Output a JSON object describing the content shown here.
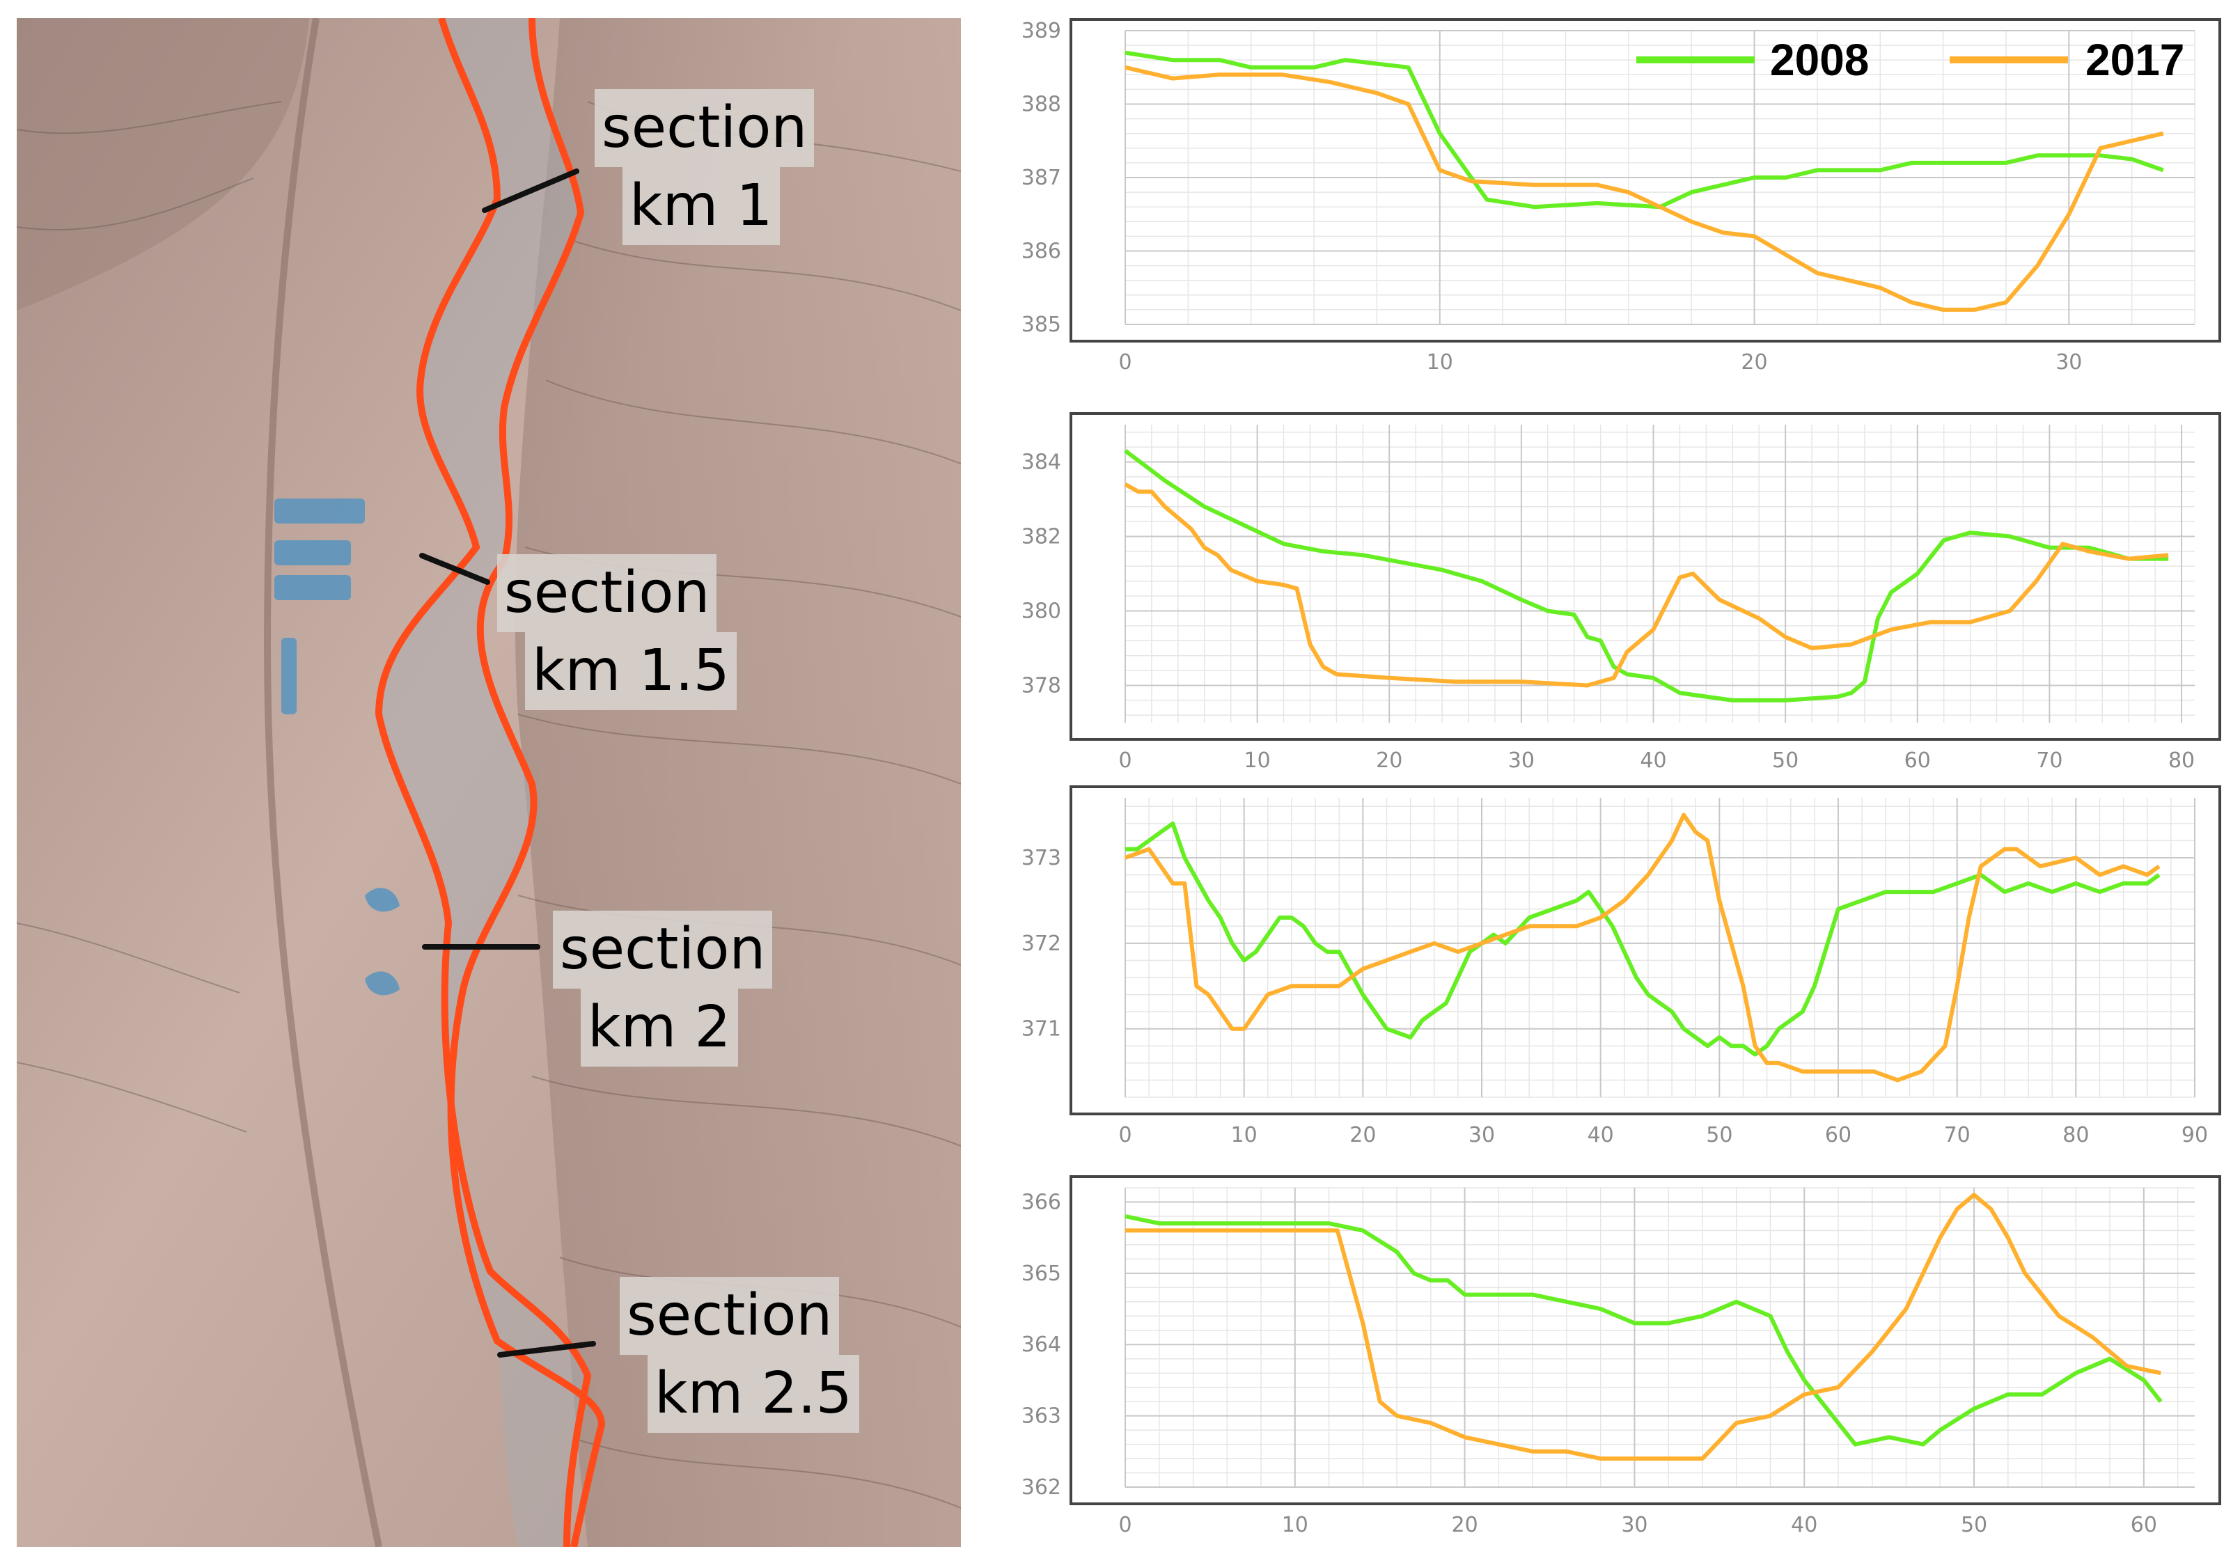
{
  "map": {
    "sections": [
      {
        "line1": "section",
        "line2": "km 1"
      },
      {
        "line1": "section",
        "line2": "km 1.5"
      },
      {
        "line1": "section",
        "line2": "km 2"
      },
      {
        "line1": "section",
        "line2": "km 2.5"
      }
    ],
    "colors": {
      "terrain": "#c2a9a0",
      "river_boundary": "#ff4a1a",
      "section_line": "#111111",
      "buildings": "#5d95bd"
    }
  },
  "chart_data": [
    {
      "type": "line",
      "title": "",
      "xlabel": "",
      "ylabel": "",
      "xlim": [
        0,
        34
      ],
      "ylim": [
        385,
        389
      ],
      "xticks": [
        0,
        10,
        20,
        30
      ],
      "yticks": [
        385,
        386,
        387,
        388,
        389
      ],
      "grid": true,
      "legend": "top-right",
      "series": [
        {
          "name": "2008",
          "color": "#66ee22",
          "x": [
            0,
            1.5,
            3,
            4,
            6,
            7,
            9,
            10,
            11.5,
            13,
            15,
            17,
            18,
            19,
            20,
            21,
            22,
            23,
            24,
            25,
            26,
            27,
            28,
            29,
            30,
            31,
            32,
            33
          ],
          "y": [
            388.7,
            388.6,
            388.6,
            388.5,
            388.5,
            388.6,
            388.5,
            387.6,
            386.7,
            386.6,
            386.65,
            386.6,
            386.8,
            386.9,
            387.0,
            387.0,
            387.1,
            387.1,
            387.1,
            387.2,
            387.2,
            387.2,
            387.2,
            387.3,
            387.3,
            387.3,
            387.25,
            387.1
          ]
        },
        {
          "name": "2017",
          "color": "#ffb02e",
          "x": [
            0,
            1.5,
            3,
            5,
            6.5,
            8,
            9,
            10,
            11,
            13,
            15,
            16,
            17,
            18,
            19,
            20,
            21,
            22,
            23,
            24,
            25,
            26,
            27,
            28,
            29,
            30,
            31,
            33
          ],
          "y": [
            388.5,
            388.35,
            388.4,
            388.4,
            388.3,
            388.15,
            388.0,
            387.1,
            386.95,
            386.9,
            386.9,
            386.8,
            386.6,
            386.4,
            386.25,
            386.2,
            385.95,
            385.7,
            385.6,
            385.5,
            385.3,
            385.2,
            385.2,
            385.3,
            385.8,
            386.5,
            387.4,
            387.6
          ]
        }
      ]
    },
    {
      "type": "line",
      "title": "",
      "xlabel": "",
      "ylabel": "",
      "xlim": [
        0,
        81
      ],
      "ylim": [
        377,
        385
      ],
      "xticks": [
        0,
        10,
        20,
        30,
        40,
        50,
        60,
        70,
        80
      ],
      "yticks": [
        378,
        380,
        382,
        384
      ],
      "grid": true,
      "series": [
        {
          "name": "2008",
          "color": "#66ee22",
          "x": [
            0,
            3,
            6,
            9,
            12,
            15,
            18,
            21,
            24,
            27,
            30,
            32,
            34,
            35,
            36,
            37,
            38,
            40,
            42,
            44,
            46,
            50,
            54,
            55,
            56,
            57,
            58,
            60,
            62,
            64,
            67,
            70,
            73,
            76,
            79
          ],
          "y": [
            384.3,
            383.5,
            382.8,
            382.3,
            381.8,
            381.6,
            381.5,
            381.3,
            381.1,
            380.8,
            380.3,
            380.0,
            379.9,
            379.3,
            379.2,
            378.5,
            378.3,
            378.2,
            377.8,
            377.7,
            377.6,
            377.6,
            377.7,
            377.8,
            378.1,
            379.8,
            380.5,
            381.0,
            381.9,
            382.1,
            382.0,
            381.7,
            381.7,
            381.4,
            381.4
          ]
        },
        {
          "name": "2017",
          "color": "#ffb02e",
          "x": [
            0,
            1,
            2,
            3,
            4,
            5,
            6,
            7,
            8,
            10,
            12,
            13,
            14,
            15,
            16,
            20,
            25,
            30,
            35,
            37,
            38,
            40,
            42,
            43,
            45,
            48,
            50,
            52,
            55,
            58,
            61,
            64,
            67,
            69,
            71,
            73,
            76,
            79
          ],
          "y": [
            383.4,
            383.2,
            383.2,
            382.8,
            382.5,
            382.2,
            381.7,
            381.5,
            381.1,
            380.8,
            380.7,
            380.6,
            379.1,
            378.5,
            378.3,
            378.2,
            378.1,
            378.1,
            378.0,
            378.2,
            378.9,
            379.5,
            380.9,
            381.0,
            380.3,
            379.8,
            379.3,
            379.0,
            379.1,
            379.5,
            379.7,
            379.7,
            380.0,
            380.8,
            381.8,
            381.6,
            381.4,
            381.5
          ]
        }
      ]
    },
    {
      "type": "line",
      "title": "",
      "xlabel": "",
      "ylabel": "",
      "xlim": [
        0,
        90
      ],
      "ylim": [
        370.2,
        373.7
      ],
      "xticks": [
        0,
        10,
        20,
        30,
        40,
        50,
        60,
        70,
        80,
        90
      ],
      "yticks": [
        371,
        372,
        373
      ],
      "grid": true,
      "series": [
        {
          "name": "2008",
          "color": "#66ee22",
          "x": [
            0,
            1,
            3,
            4,
            5,
            7,
            8,
            9,
            10,
            11,
            13,
            14,
            15,
            16,
            17,
            18,
            20,
            22,
            24,
            25,
            26,
            27,
            28,
            29,
            30,
            31,
            32,
            34,
            36,
            38,
            39,
            40,
            41,
            42,
            43,
            44,
            45,
            46,
            47,
            49,
            50,
            51,
            52,
            53,
            54,
            55,
            56,
            57,
            58,
            60,
            62,
            64,
            66,
            68,
            70,
            72,
            74,
            76,
            78,
            80,
            82,
            84,
            86,
            87
          ],
          "y": [
            373.1,
            373.1,
            373.3,
            373.4,
            373.0,
            372.5,
            372.3,
            372.0,
            371.8,
            371.9,
            372.3,
            372.3,
            372.2,
            372.0,
            371.9,
            371.9,
            371.4,
            371.0,
            370.9,
            371.1,
            371.2,
            371.3,
            371.6,
            371.9,
            372.0,
            372.1,
            372.0,
            372.3,
            372.4,
            372.5,
            372.6,
            372.4,
            372.2,
            371.9,
            371.6,
            371.4,
            371.3,
            371.2,
            371.0,
            370.8,
            370.9,
            370.8,
            370.8,
            370.7,
            370.8,
            371.0,
            371.1,
            371.2,
            371.5,
            372.4,
            372.5,
            372.6,
            372.6,
            372.6,
            372.7,
            372.8,
            372.6,
            372.7,
            372.6,
            372.7,
            372.6,
            372.7,
            372.7,
            372.8
          ]
        },
        {
          "name": "2017",
          "color": "#ffb02e",
          "x": [
            0,
            2,
            3,
            4,
            5,
            6,
            7,
            8,
            9,
            10,
            12,
            14,
            16,
            18,
            20,
            22,
            24,
            26,
            28,
            30,
            32,
            34,
            36,
            38,
            40,
            42,
            44,
            46,
            47,
            48,
            49,
            50,
            51,
            52,
            53,
            54,
            55,
            57,
            59,
            61,
            63,
            65,
            67,
            69,
            70,
            71,
            72,
            74,
            75,
            77,
            80,
            82,
            84,
            86,
            87
          ],
          "y": [
            373.0,
            373.1,
            372.9,
            372.7,
            372.7,
            371.5,
            371.4,
            371.2,
            371.0,
            371.0,
            371.4,
            371.5,
            371.5,
            371.5,
            371.7,
            371.8,
            371.9,
            372.0,
            371.9,
            372.0,
            372.1,
            372.2,
            372.2,
            372.2,
            372.3,
            372.5,
            372.8,
            373.2,
            373.5,
            373.3,
            373.2,
            372.5,
            372.0,
            371.5,
            370.8,
            370.6,
            370.6,
            370.5,
            370.5,
            370.5,
            370.5,
            370.4,
            370.5,
            370.8,
            371.5,
            372.3,
            372.9,
            373.1,
            373.1,
            372.9,
            373.0,
            372.8,
            372.9,
            372.8,
            372.9
          ]
        }
      ]
    },
    {
      "type": "line",
      "title": "",
      "xlabel": "",
      "ylabel": "",
      "xlim": [
        0,
        63
      ],
      "ylim": [
        362,
        366.2
      ],
      "xticks": [
        0,
        10,
        20,
        30,
        40,
        50,
        60
      ],
      "yticks": [
        362,
        363,
        364,
        365,
        366
      ],
      "grid": true,
      "series": [
        {
          "name": "2008",
          "color": "#66ee22",
          "x": [
            0,
            2,
            4,
            6,
            8,
            10,
            12,
            14,
            16,
            17,
            18,
            19,
            20,
            22,
            24,
            26,
            28,
            30,
            32,
            34,
            36,
            38,
            39,
            40,
            41,
            42,
            43,
            45,
            47,
            48,
            50,
            52,
            54,
            56,
            58,
            60,
            61
          ],
          "y": [
            365.8,
            365.7,
            365.7,
            365.7,
            365.7,
            365.7,
            365.7,
            365.6,
            365.3,
            365.0,
            364.9,
            364.9,
            364.7,
            364.7,
            364.7,
            364.6,
            364.5,
            364.3,
            364.3,
            364.4,
            364.6,
            364.4,
            363.9,
            363.5,
            363.2,
            362.9,
            362.6,
            362.7,
            362.6,
            362.8,
            363.1,
            363.3,
            363.3,
            363.6,
            363.8,
            363.5,
            363.2
          ]
        },
        {
          "name": "2017",
          "color": "#ffb02e",
          "x": [
            0,
            2,
            4,
            6,
            8,
            10,
            12.5,
            14,
            15,
            16,
            18,
            20,
            22,
            24,
            26,
            28,
            30,
            32,
            34,
            36,
            38,
            40,
            42,
            44,
            46,
            48,
            49,
            50,
            51,
            52,
            53,
            55,
            57,
            59,
            61
          ],
          "y": [
            365.6,
            365.6,
            365.6,
            365.6,
            365.6,
            365.6,
            365.6,
            364.3,
            363.2,
            363.0,
            362.9,
            362.7,
            362.6,
            362.5,
            362.5,
            362.4,
            362.4,
            362.4,
            362.4,
            362.9,
            363.0,
            363.3,
            363.4,
            363.9,
            364.5,
            365.5,
            365.9,
            366.1,
            365.9,
            365.5,
            365.0,
            364.4,
            364.1,
            363.7,
            363.6
          ]
        }
      ]
    }
  ]
}
